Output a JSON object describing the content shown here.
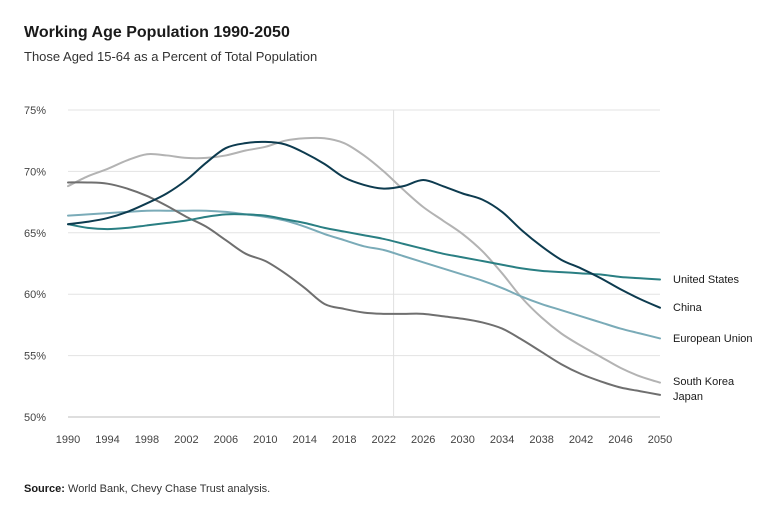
{
  "header": {
    "title": "Working Age Population 1990-2050",
    "subtitle": "Those Aged 15-64 as a Percent of Total Population"
  },
  "source": {
    "label": "Source:",
    "text": "World Bank, Chevy Chase Trust analysis."
  },
  "chart_data": {
    "type": "line",
    "title": "Working Age Population 1990-2050",
    "subtitle": "Those Aged 15-64 as a Percent of Total Population",
    "xlabel": "",
    "ylabel": "",
    "xlim": [
      1990,
      2050
    ],
    "ylim": [
      50,
      75
    ],
    "x_ticks": [
      1990,
      1994,
      1998,
      2002,
      2006,
      2010,
      2014,
      2018,
      2022,
      2026,
      2030,
      2034,
      2038,
      2042,
      2046,
      2050
    ],
    "y_ticks": [
      50,
      55,
      60,
      65,
      70,
      75
    ],
    "y_tick_labels": [
      "50%",
      "55%",
      "60%",
      "65%",
      "70%",
      "75%"
    ],
    "grid": true,
    "reference_line_x": 2023,
    "x": [
      1990,
      1992,
      1994,
      1996,
      1998,
      2000,
      2002,
      2004,
      2006,
      2008,
      2010,
      2012,
      2014,
      2016,
      2018,
      2020,
      2022,
      2024,
      2026,
      2028,
      2030,
      2032,
      2034,
      2036,
      2038,
      2040,
      2042,
      2044,
      2046,
      2048,
      2050
    ],
    "series": [
      {
        "name": "United States",
        "color": "#2a7f83",
        "values": [
          65.7,
          65.4,
          65.3,
          65.4,
          65.6,
          65.8,
          66.0,
          66.3,
          66.5,
          66.5,
          66.4,
          66.1,
          65.8,
          65.4,
          65.1,
          64.8,
          64.5,
          64.1,
          63.7,
          63.3,
          63.0,
          62.7,
          62.4,
          62.1,
          61.9,
          61.8,
          61.7,
          61.6,
          61.4,
          61.3,
          61.2
        ]
      },
      {
        "name": "China",
        "color": "#0d3b4f",
        "values": [
          65.7,
          65.9,
          66.2,
          66.7,
          67.4,
          68.2,
          69.3,
          70.7,
          71.9,
          72.3,
          72.4,
          72.2,
          71.5,
          70.6,
          69.5,
          68.9,
          68.6,
          68.8,
          69.3,
          68.8,
          68.2,
          67.7,
          66.7,
          65.2,
          63.9,
          62.8,
          62.1,
          61.3,
          60.4,
          59.6,
          58.9
        ]
      },
      {
        "name": "European Union",
        "color": "#7aabb8",
        "values": [
          66.4,
          66.5,
          66.6,
          66.7,
          66.8,
          66.8,
          66.8,
          66.8,
          66.7,
          66.5,
          66.3,
          66.0,
          65.5,
          64.9,
          64.4,
          63.9,
          63.6,
          63.1,
          62.6,
          62.1,
          61.6,
          61.1,
          60.5,
          59.8,
          59.2,
          58.7,
          58.2,
          57.7,
          57.2,
          56.8,
          56.4
        ]
      },
      {
        "name": "South Korea",
        "color": "#b3b3b3",
        "values": [
          68.8,
          69.6,
          70.2,
          70.9,
          71.4,
          71.3,
          71.1,
          71.1,
          71.3,
          71.7,
          72.0,
          72.5,
          72.7,
          72.7,
          72.3,
          71.3,
          70.0,
          68.5,
          67.1,
          66.0,
          64.9,
          63.5,
          61.7,
          59.7,
          58.1,
          56.8,
          55.8,
          54.9,
          54.0,
          53.3,
          52.8
        ]
      },
      {
        "name": "Japan",
        "color": "#6f6f6f",
        "values": [
          69.1,
          69.1,
          69.0,
          68.6,
          68.0,
          67.2,
          66.3,
          65.5,
          64.4,
          63.3,
          62.7,
          61.7,
          60.5,
          59.2,
          58.8,
          58.5,
          58.4,
          58.4,
          58.4,
          58.2,
          58.0,
          57.7,
          57.2,
          56.3,
          55.3,
          54.3,
          53.5,
          52.9,
          52.4,
          52.1,
          51.8
        ]
      }
    ],
    "legend": [
      {
        "series": "United States",
        "label": "United States"
      },
      {
        "series": "China",
        "label": "China"
      },
      {
        "series": "European Union",
        "label": "European Union"
      },
      {
        "series": "South Korea",
        "label": "South Korea"
      },
      {
        "series": "Japan",
        "label": "Japan"
      }
    ]
  }
}
